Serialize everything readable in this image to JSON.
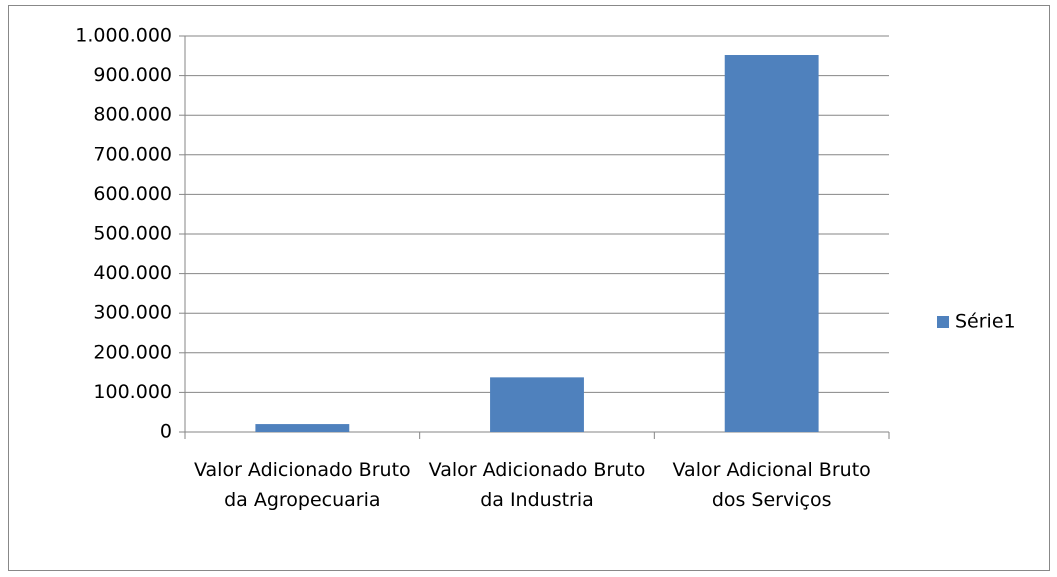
{
  "chart_data": {
    "type": "bar",
    "categories": [
      "Valor Adicionado Bruto da Agropecuaria",
      "Valor Adicionado Bruto da Industria",
      "Valor Adicional Bruto dos Serviços"
    ],
    "series": [
      {
        "name": "Série1",
        "color": "#4f81bd",
        "values": [
          20000,
          138000,
          952000
        ]
      }
    ],
    "ylim": [
      0,
      1000000
    ],
    "yticks": [
      0,
      {
        "value": 100000,
        "label": "100.000"
      },
      {
        "value": 200000,
        "label": "200.000"
      },
      {
        "value": 300000,
        "label": "300.000"
      },
      {
        "value": 400000,
        "label": "400.000"
      },
      {
        "value": 500000,
        "label": "500.000"
      },
      {
        "value": 600000,
        "label": "600.000"
      },
      {
        "value": 700000,
        "label": "700.000"
      },
      {
        "value": 800000,
        "label": "800.000"
      },
      {
        "value": 900000,
        "label": "900.000"
      },
      {
        "value": 1000000,
        "label": "1.000.000"
      }
    ],
    "grid": true,
    "legend": "right"
  }
}
